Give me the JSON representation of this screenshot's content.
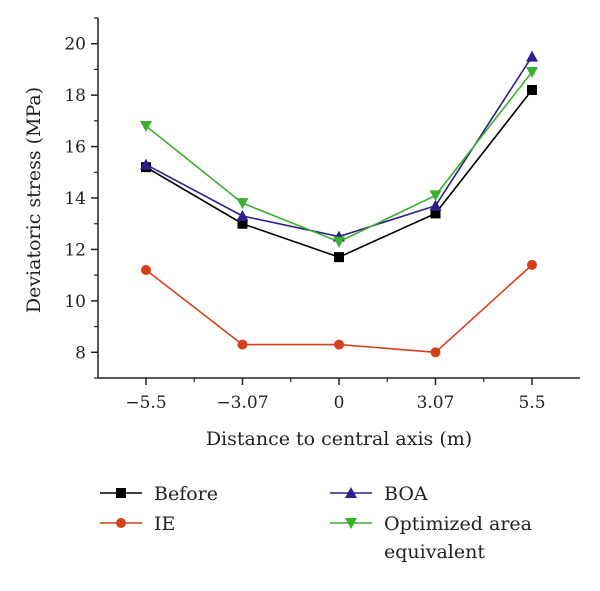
{
  "chart_data": {
    "type": "line",
    "xlabel": "Distance to central axis (m)",
    "ylabel": "Deviatoric stress (MPa)",
    "categories": [
      "−5.5",
      "−3.07",
      "0",
      "3.07",
      "5.5"
    ],
    "x_values": [
      -5.5,
      -3.07,
      0,
      3.07,
      5.5
    ],
    "ylim": [
      7,
      21
    ],
    "y_ticks": [
      8,
      10,
      12,
      14,
      16,
      18,
      20
    ],
    "grid": false,
    "legend_position": "bottom",
    "series": [
      {
        "name": "Before",
        "color": "#000000",
        "marker": "square",
        "values": [
          15.2,
          13.0,
          11.7,
          13.4,
          18.2
        ]
      },
      {
        "name": "IE",
        "color": "#d4401b",
        "marker": "circle",
        "values": [
          11.2,
          8.3,
          8.3,
          8.0,
          11.4
        ]
      },
      {
        "name": "BOA",
        "color": "#2e1f8e",
        "marker": "triangle-up",
        "values": [
          15.3,
          13.3,
          12.5,
          13.7,
          19.5
        ]
      },
      {
        "name": "Optimized area equivalent",
        "name_lines": [
          "Optimized area",
          "equivalent"
        ],
        "color": "#3cb030",
        "marker": "triangle-down",
        "values": [
          16.8,
          13.8,
          12.3,
          14.1,
          18.9
        ]
      }
    ]
  }
}
